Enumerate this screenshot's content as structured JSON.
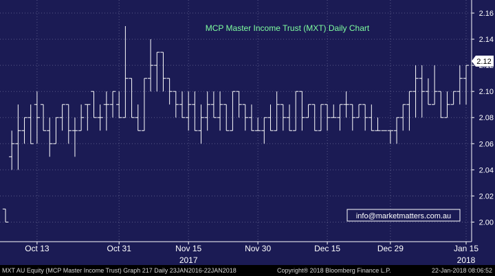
{
  "chart_data": {
    "type": "ohlc",
    "title": "MCP Master Income Trust (MXT) Daily Chart",
    "xlabel": "",
    "ylabel": "",
    "ylim": [
      1.985,
      2.17
    ],
    "y_ticks": [
      "2.00",
      "2.02",
      "2.04",
      "2.06",
      "2.08",
      "2.10",
      "2.12",
      "2.14",
      "2.16"
    ],
    "x_ticks": [
      "Oct 13",
      "Oct 31",
      "Nov 15",
      "Nov 30",
      "Dec 15",
      "Dec 29",
      "Jan 15"
    ],
    "x_ticks_pos": [
      5,
      18,
      29,
      40,
      51,
      61,
      73
    ],
    "year_labels": [
      {
        "label": "2017",
        "pos": 29
      },
      {
        "label": "2018",
        "pos": 73
      }
    ],
    "last_price": "2.12",
    "grid": true,
    "bars": [
      {
        "o": 2.01,
        "h": 2.01,
        "l": 2.0,
        "c": 2.0
      },
      {
        "o": 2.05,
        "h": 2.07,
        "l": 2.04,
        "c": 2.06
      },
      {
        "o": 2.06,
        "h": 2.09,
        "l": 2.04,
        "c": 2.07
      },
      {
        "o": 2.07,
        "h": 2.08,
        "l": 2.06,
        "c": 2.08
      },
      {
        "o": 2.08,
        "h": 2.09,
        "l": 2.06,
        "c": 2.06
      },
      {
        "o": 2.09,
        "h": 2.1,
        "l": 2.06,
        "c": 2.08
      },
      {
        "o": 2.09,
        "h": 2.09,
        "l": 2.07,
        "c": 2.07
      },
      {
        "o": 2.07,
        "h": 2.08,
        "l": 2.05,
        "c": 2.06
      },
      {
        "o": 2.06,
        "h": 2.08,
        "l": 2.06,
        "c": 2.08
      },
      {
        "o": 2.08,
        "h": 2.09,
        "l": 2.07,
        "c": 2.09
      },
      {
        "o": 2.09,
        "h": 2.09,
        "l": 2.06,
        "c": 2.07
      },
      {
        "o": 2.07,
        "h": 2.08,
        "l": 2.05,
        "c": 2.07
      },
      {
        "o": 2.07,
        "h": 2.09,
        "l": 2.07,
        "c": 2.08
      },
      {
        "o": 2.09,
        "h": 2.09,
        "l": 2.07,
        "c": 2.09
      },
      {
        "o": 2.1,
        "h": 2.1,
        "l": 2.08,
        "c": 2.08
      },
      {
        "o": 2.08,
        "h": 2.09,
        "l": 2.07,
        "c": 2.08
      },
      {
        "o": 2.09,
        "h": 2.1,
        "l": 2.07,
        "c": 2.09
      },
      {
        "o": 2.09,
        "h": 2.1,
        "l": 2.08,
        "c": 2.1
      },
      {
        "o": 2.09,
        "h": 2.1,
        "l": 2.08,
        "c": 2.08
      },
      {
        "o": 2.08,
        "h": 2.15,
        "l": 2.08,
        "c": 2.11
      },
      {
        "o": 2.11,
        "h": 2.11,
        "l": 2.08,
        "c": 2.08
      },
      {
        "o": 2.08,
        "h": 2.09,
        "l": 2.07,
        "c": 2.07
      },
      {
        "o": 2.07,
        "h": 2.11,
        "l": 2.07,
        "c": 2.11
      },
      {
        "o": 2.11,
        "h": 2.14,
        "l": 2.1,
        "c": 2.12
      },
      {
        "o": 2.12,
        "h": 2.13,
        "l": 2.1,
        "c": 2.13
      },
      {
        "o": 2.13,
        "h": 2.13,
        "l": 2.1,
        "c": 2.11
      },
      {
        "o": 2.11,
        "h": 2.11,
        "l": 2.09,
        "c": 2.1
      },
      {
        "o": 2.1,
        "h": 2.1,
        "l": 2.08,
        "c": 2.09
      },
      {
        "o": 2.09,
        "h": 2.1,
        "l": 2.08,
        "c": 2.08
      },
      {
        "o": 2.08,
        "h": 2.1,
        "l": 2.07,
        "c": 2.09
      },
      {
        "o": 2.09,
        "h": 2.1,
        "l": 2.07,
        "c": 2.07
      },
      {
        "o": 2.07,
        "h": 2.09,
        "l": 2.06,
        "c": 2.08
      },
      {
        "o": 2.08,
        "h": 2.1,
        "l": 2.07,
        "c": 2.09
      },
      {
        "o": 2.09,
        "h": 2.1,
        "l": 2.08,
        "c": 2.08
      },
      {
        "o": 2.08,
        "h": 2.1,
        "l": 2.07,
        "c": 2.09
      },
      {
        "o": 2.09,
        "h": 2.09,
        "l": 2.07,
        "c": 2.07
      },
      {
        "o": 2.07,
        "h": 2.1,
        "l": 2.07,
        "c": 2.1
      },
      {
        "o": 2.1,
        "h": 2.1,
        "l": 2.08,
        "c": 2.09
      },
      {
        "o": 2.09,
        "h": 2.09,
        "l": 2.07,
        "c": 2.08
      },
      {
        "o": 2.08,
        "h": 2.09,
        "l": 2.07,
        "c": 2.07
      },
      {
        "o": 2.07,
        "h": 2.08,
        "l": 2.07,
        "c": 2.07
      },
      {
        "o": 2.07,
        "h": 2.08,
        "l": 2.06,
        "c": 2.08
      },
      {
        "o": 2.08,
        "h": 2.09,
        "l": 2.07,
        "c": 2.07
      },
      {
        "o": 2.07,
        "h": 2.1,
        "l": 2.07,
        "c": 2.09
      },
      {
        "o": 2.09,
        "h": 2.09,
        "l": 2.07,
        "c": 2.08
      },
      {
        "o": 2.08,
        "h": 2.09,
        "l": 2.07,
        "c": 2.07
      },
      {
        "o": 2.07,
        "h": 2.1,
        "l": 2.07,
        "c": 2.1
      },
      {
        "o": 2.1,
        "h": 2.1,
        "l": 2.07,
        "c": 2.08
      },
      {
        "o": 2.08,
        "h": 2.09,
        "l": 2.08,
        "c": 2.09
      },
      {
        "o": 2.09,
        "h": 2.09,
        "l": 2.07,
        "c": 2.07
      },
      {
        "o": 2.07,
        "h": 2.09,
        "l": 2.07,
        "c": 2.09
      },
      {
        "o": 2.09,
        "h": 2.09,
        "l": 2.07,
        "c": 2.08
      },
      {
        "o": 2.08,
        "h": 2.09,
        "l": 2.08,
        "c": 2.08
      },
      {
        "o": 2.08,
        "h": 2.09,
        "l": 2.07,
        "c": 2.09
      },
      {
        "o": 2.09,
        "h": 2.1,
        "l": 2.08,
        "c": 2.09
      },
      {
        "o": 2.09,
        "h": 2.09,
        "l": 2.07,
        "c": 2.08
      },
      {
        "o": 2.08,
        "h": 2.09,
        "l": 2.08,
        "c": 2.09
      },
      {
        "o": 2.09,
        "h": 2.09,
        "l": 2.07,
        "c": 2.08
      },
      {
        "o": 2.08,
        "h": 2.09,
        "l": 2.07,
        "c": 2.07
      },
      {
        "o": 2.07,
        "h": 2.08,
        "l": 2.07,
        "c": 2.07
      },
      {
        "o": 2.07,
        "h": 2.07,
        "l": 2.07,
        "c": 2.07
      },
      {
        "o": 2.07,
        "h": 2.07,
        "l": 2.06,
        "c": 2.07
      },
      {
        "o": 2.07,
        "h": 2.08,
        "l": 2.06,
        "c": 2.08
      },
      {
        "o": 2.08,
        "h": 2.09,
        "l": 2.07,
        "c": 2.09
      },
      {
        "o": 2.09,
        "h": 2.1,
        "l": 2.07,
        "c": 2.1
      },
      {
        "o": 2.1,
        "h": 2.12,
        "l": 2.08,
        "c": 2.11
      },
      {
        "o": 2.11,
        "h": 2.12,
        "l": 2.08,
        "c": 2.1
      },
      {
        "o": 2.1,
        "h": 2.11,
        "l": 2.09,
        "c": 2.09
      },
      {
        "o": 2.09,
        "h": 2.12,
        "l": 2.09,
        "c": 2.1
      },
      {
        "o": 2.1,
        "h": 2.1,
        "l": 2.08,
        "c": 2.08
      },
      {
        "o": 2.08,
        "h": 2.1,
        "l": 2.08,
        "c": 2.09
      },
      {
        "o": 2.09,
        "h": 2.1,
        "l": 2.09,
        "c": 2.1
      },
      {
        "o": 2.1,
        "h": 2.12,
        "l": 2.09,
        "c": 2.11
      },
      {
        "o": 2.11,
        "h": 2.12,
        "l": 2.09,
        "c": 2.12
      }
    ]
  },
  "annotation": {
    "contact": "info@marketmatters.com.au"
  },
  "footer": {
    "left": "MXT AU Equity (MCP Master Income Trust) Graph 217  Daily 23JAN2016-22JAN2018",
    "center": "Copyright® 2018 Bloomberg Finance L.P.",
    "right": "22-Jan-2018 08:06:52"
  },
  "colors": {
    "background": "#1b1b54",
    "bars": "#ffffff",
    "grid": "#5a5a88",
    "title": "#7fffa0",
    "axis_text": "#ffffff",
    "annotation_border": "#ffffff"
  }
}
